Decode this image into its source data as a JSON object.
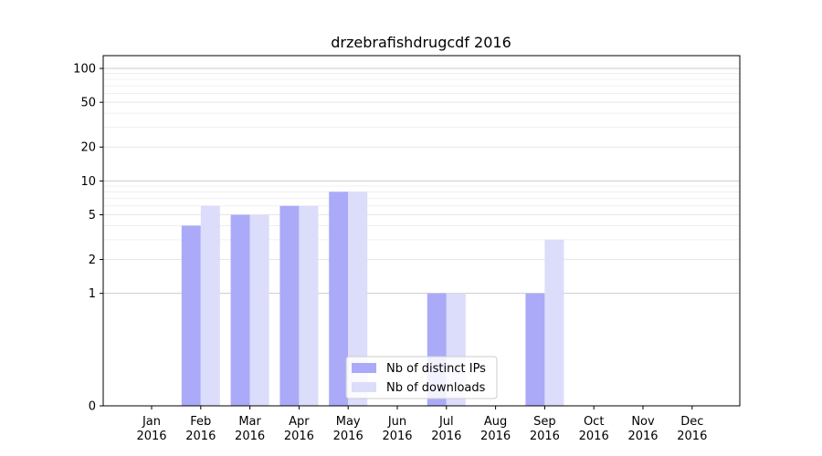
{
  "chart_data": {
    "type": "bar",
    "title": "drzebrafishdrugcdf 2016",
    "xlabel": "",
    "ylabel": "",
    "y_scale": "symlog",
    "ylim": [
      0,
      130
    ],
    "y_ticks": [
      0,
      1,
      2,
      5,
      10,
      20,
      50,
      100
    ],
    "categories": [
      [
        "Jan",
        "2016"
      ],
      [
        "Feb",
        "2016"
      ],
      [
        "Mar",
        "2016"
      ],
      [
        "Apr",
        "2016"
      ],
      [
        "May",
        "2016"
      ],
      [
        "Jun",
        "2016"
      ],
      [
        "Jul",
        "2016"
      ],
      [
        "Aug",
        "2016"
      ],
      [
        "Sep",
        "2016"
      ],
      [
        "Oct",
        "2016"
      ],
      [
        "Nov",
        "2016"
      ],
      [
        "Dec",
        "2016"
      ]
    ],
    "series": [
      {
        "name": "Nb of distinct IPs",
        "color": "#aaaaf8",
        "values": [
          0,
          4,
          5,
          6,
          8,
          0,
          1,
          0,
          1,
          0,
          0,
          0
        ]
      },
      {
        "name": "Nb of downloads",
        "color": "#dcdcfb",
        "values": [
          0,
          6,
          5,
          6,
          8,
          0,
          1,
          0,
          3,
          0,
          0,
          0
        ]
      }
    ],
    "grid": true,
    "legend_position": "bottom-center"
  }
}
